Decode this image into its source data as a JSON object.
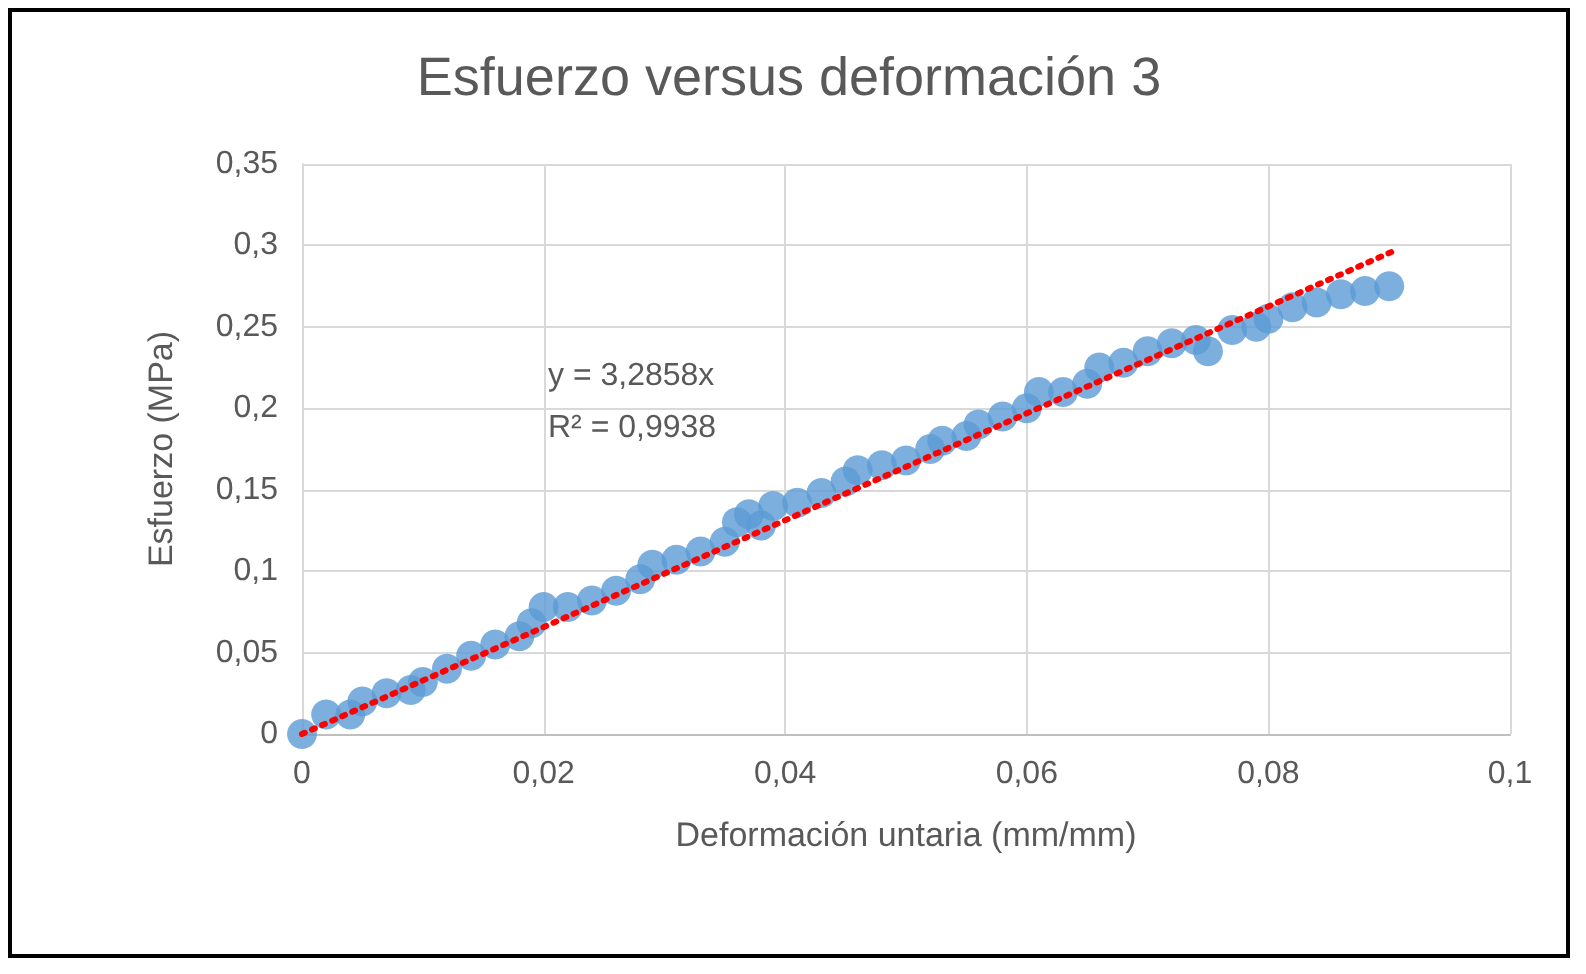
{
  "chart_data": {
    "type": "scatter",
    "title": "Esfuerzo versus deformación 3",
    "xlabel": "Deformación untaria (mm/mm)",
    "ylabel": "Esfuerzo (MPa)",
    "annotations": [
      "y = 3,2858x",
      "R² = 0,9938"
    ],
    "xlim": [
      0,
      0.1
    ],
    "ylim": [
      0,
      0.35
    ],
    "xticks": [
      0,
      {
        "value": 0.02,
        "label": "0,02"
      },
      {
        "value": 0.04,
        "label": "0,04"
      },
      {
        "value": 0.06,
        "label": "0,06"
      },
      {
        "value": 0.08,
        "label": "0,08"
      },
      {
        "value": 0.1,
        "label": "0,1"
      }
    ],
    "yticks": [
      0,
      {
        "value": 0.05,
        "label": "0,05"
      },
      {
        "value": 0.1,
        "label": "0,1"
      },
      {
        "value": 0.15,
        "label": "0,15"
      },
      {
        "value": 0.2,
        "label": "0,2"
      },
      {
        "value": 0.25,
        "label": "0,25"
      },
      {
        "value": 0.3,
        "label": "0,3"
      },
      {
        "value": 0.35,
        "label": "0,35"
      }
    ],
    "grid": true,
    "marker": "circle",
    "series": [
      {
        "color": "#5b9bd5",
        "x": [
          0,
          0.002,
          0.004,
          0.005,
          0.007,
          0.009,
          0.01,
          0.012,
          0.014,
          0.016,
          0.018,
          0.019,
          0.02,
          0.022,
          0.024,
          0.026,
          0.028,
          0.029,
          0.031,
          0.033,
          0.035,
          0.036,
          0.037,
          0.038,
          0.039,
          0.041,
          0.043,
          0.045,
          0.046,
          0.048,
          0.05,
          0.052,
          0.053,
          0.055,
          0.056,
          0.058,
          0.06,
          0.061,
          0.063,
          0.065,
          0.066,
          0.068,
          0.07,
          0.072,
          0.074,
          0.075,
          0.077,
          0.079,
          0.08,
          0.082,
          0.084,
          0.086,
          0.088,
          0.09
        ],
        "values": [
          0,
          0.012,
          0.012,
          0.02,
          0.025,
          0.027,
          0.032,
          0.04,
          0.048,
          0.055,
          0.06,
          0.068,
          0.078,
          0.078,
          0.082,
          0.088,
          0.095,
          0.104,
          0.107,
          0.112,
          0.118,
          0.13,
          0.135,
          0.128,
          0.14,
          0.142,
          0.148,
          0.155,
          0.162,
          0.165,
          0.168,
          0.175,
          0.18,
          0.183,
          0.19,
          0.195,
          0.2,
          0.21,
          0.21,
          0.215,
          0.225,
          0.228,
          0.235,
          0.24,
          0.242,
          0.235,
          0.248,
          0.25,
          0.255,
          0.262,
          0.265,
          0.27,
          0.272,
          0.275
        ]
      },
      {
        "type": "line",
        "color": "#ff0000",
        "marker": "none",
        "line_style": "dotted",
        "x": [
          0,
          0.0905
        ],
        "values": [
          0,
          0.297
        ]
      }
    ]
  }
}
